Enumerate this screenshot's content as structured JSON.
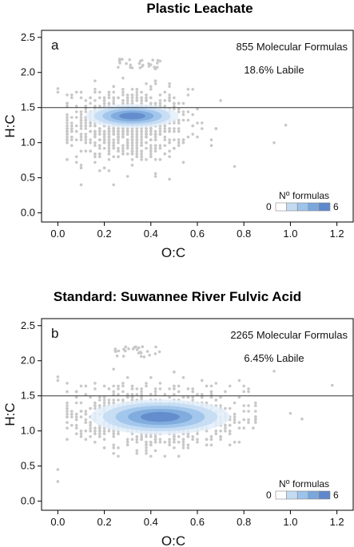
{
  "chart_data": [
    {
      "type": "scatter",
      "panel": "a",
      "title": "Plastic Leachate",
      "xlabel": "O:C",
      "ylabel": "H:C",
      "xlim": [
        -0.07,
        1.27
      ],
      "ylim": [
        -0.13,
        2.6
      ],
      "xticks": [
        "0.0",
        "0.2",
        "0.4",
        "0.6",
        "0.8",
        "1.0",
        "1.2"
      ],
      "yticks": [
        "0.0",
        "0.5",
        "1.0",
        "1.5",
        "2.0",
        "2.5"
      ],
      "reference_line_hc": 1.5,
      "annotation_count": "855 Molecular Formulas",
      "annotation_labile": "18.6% Labile",
      "legend": {
        "title": "N",
        "title_sup": "o",
        "title_rest": " formulas",
        "min": "0",
        "max": "6"
      },
      "scatter_center": [
        0.3,
        1.25
      ],
      "scatter_spread": [
        0.13,
        0.26
      ],
      "scatter_count": 855,
      "density_center": [
        0.32,
        1.38
      ],
      "density_radius": [
        0.2,
        0.17
      ],
      "outliers": [
        [
          0.0,
          1.77
        ],
        [
          0.0,
          1.72
        ],
        [
          0.93,
          1.0
        ],
        [
          0.98,
          1.25
        ],
        [
          0.76,
          0.66
        ]
      ],
      "cluster_top": {
        "x_range": [
          0.24,
          0.44
        ],
        "y_range": [
          2.05,
          2.2
        ]
      },
      "point_color": "#c8c8c8",
      "density_colors": [
        "#e3effa",
        "#c2dbf2",
        "#9cc3ea",
        "#7aa7dc",
        "#5f87cb"
      ]
    },
    {
      "type": "scatter",
      "panel": "b",
      "title": "Standard: Suwannee River Fulvic Acid",
      "xlabel": "O:C",
      "ylabel": "H:C",
      "xlim": [
        -0.07,
        1.27
      ],
      "ylim": [
        -0.13,
        2.6
      ],
      "xticks": [
        "0.0",
        "0.2",
        "0.4",
        "0.6",
        "0.8",
        "1.0",
        "1.2"
      ],
      "yticks": [
        "0.0",
        "0.5",
        "1.0",
        "1.5",
        "2.0",
        "2.5"
      ],
      "reference_line_hc": 1.5,
      "annotation_count": "2265 Molecular Formulas",
      "annotation_labile": "6.45% Labile",
      "legend": {
        "title": "N",
        "title_sup": "o",
        "title_rest": " formulas",
        "min": "0",
        "max": "6"
      },
      "scatter_center": [
        0.42,
        1.2
      ],
      "scatter_spread": [
        0.17,
        0.2
      ],
      "scatter_count": 2265,
      "density_center": [
        0.44,
        1.2
      ],
      "density_radius": [
        0.3,
        0.25
      ],
      "outliers": [
        [
          0.0,
          0.45
        ],
        [
          0.0,
          0.28
        ],
        [
          0.0,
          1.77
        ],
        [
          0.0,
          1.72
        ],
        [
          0.93,
          1.85
        ],
        [
          1.0,
          1.25
        ],
        [
          1.18,
          1.65
        ],
        [
          1.05,
          1.17
        ]
      ],
      "cluster_top": {
        "x_range": [
          0.24,
          0.44
        ],
        "y_range": [
          2.05,
          2.2
        ]
      },
      "point_color": "#c8c8c8",
      "density_colors": [
        "#e3effa",
        "#c2dbf2",
        "#9cc3ea",
        "#7aa7dc",
        "#5f87cb"
      ]
    }
  ]
}
